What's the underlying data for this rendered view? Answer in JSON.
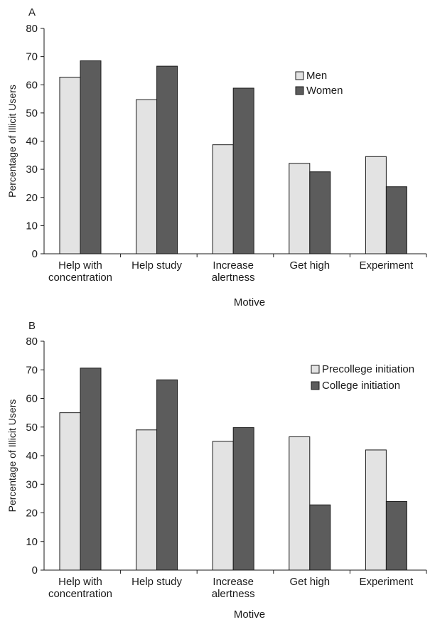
{
  "chart_data": [
    {
      "type": "bar",
      "panel_label": "A",
      "categories": [
        [
          "Help with",
          "concentration"
        ],
        [
          "Help study"
        ],
        [
          "Increase",
          "alertness"
        ],
        [
          "Get high"
        ],
        [
          "Experiment"
        ]
      ],
      "series": [
        {
          "name": "Men",
          "values": [
            62.7,
            54.7,
            38.7,
            32.1,
            34.5
          ],
          "color": "#e3e3e3"
        },
        {
          "name": "Women",
          "values": [
            68.5,
            66.6,
            58.8,
            29.1,
            23.8
          ],
          "color": "#5c5c5c"
        }
      ],
      "xlabel": "Motive",
      "ylabel": "Percentage of Illicit Users",
      "ylim": [
        0,
        80
      ],
      "yticks": [
        0,
        10,
        20,
        30,
        40,
        50,
        60,
        70,
        80
      ],
      "legend_position": "right",
      "grid": false
    },
    {
      "type": "bar",
      "panel_label": "B",
      "categories": [
        [
          "Help with",
          "concentration"
        ],
        [
          "Help study"
        ],
        [
          "Increase",
          "alertness"
        ],
        [
          "Get high"
        ],
        [
          "Experiment"
        ]
      ],
      "series": [
        {
          "name": "Precollege initiation",
          "values": [
            55.0,
            49.0,
            45.0,
            46.6,
            42.0
          ],
          "color": "#e3e3e3"
        },
        {
          "name": "College initiation",
          "values": [
            70.6,
            66.5,
            49.8,
            22.8,
            24.0
          ],
          "color": "#5c5c5c"
        }
      ],
      "xlabel": "Motive",
      "ylabel": "Percentage of Illicit Users",
      "ylim": [
        0,
        80
      ],
      "yticks": [
        0,
        10,
        20,
        30,
        40,
        50,
        60,
        70,
        80
      ],
      "legend_position": "right",
      "grid": false
    }
  ]
}
